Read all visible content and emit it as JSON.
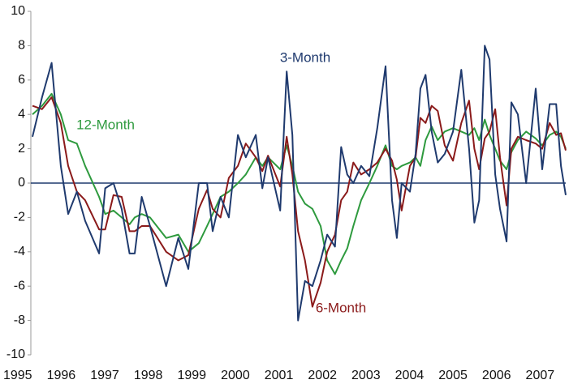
{
  "chart_data": {
    "type": "line",
    "x": [
      1995.34,
      1995.56,
      1995.78,
      1995.99,
      1996.16,
      1996.36,
      1996.55,
      1996.87,
      1997.01,
      1997.2,
      1997.39,
      1997.57,
      1997.69,
      1997.85,
      1998.04,
      1998.41,
      1998.69,
      1998.92,
      1999.16,
      1999.35,
      1999.48,
      1999.66,
      1999.85,
      2000.06,
      2000.24,
      2000.47,
      2000.62,
      2000.75,
      2001.03,
      2001.18,
      2001.31,
      2001.44,
      2001.6,
      2001.77,
      2001.96,
      2002.11,
      2002.29,
      2002.43,
      2002.57,
      2002.71,
      2002.89,
      2003.08,
      2003.26,
      2003.45,
      2003.6,
      2003.71,
      2003.82,
      2004.01,
      2004.14,
      2004.25,
      2004.37,
      2004.51,
      2004.65,
      2004.81,
      2005.0,
      2005.19,
      2005.37,
      2005.49,
      2005.6,
      2005.73,
      2005.84,
      2005.97,
      2006.08,
      2006.23,
      2006.34,
      2006.49,
      2006.68,
      2006.9,
      2007.05,
      2007.22,
      2007.37,
      2007.48,
      2007.59
    ],
    "series": [
      {
        "name": "3-Month",
        "color": "#1f3a6e",
        "values": [
          2.7,
          5,
          7,
          1,
          -1.8,
          -0.5,
          -2.2,
          -4.1,
          -0.3,
          0,
          -1.5,
          -4.1,
          -4.1,
          -0.8,
          -2.5,
          -6,
          -3.2,
          -5,
          0,
          0,
          -2.8,
          -0.8,
          -2,
          2.8,
          1.5,
          2.8,
          -0.3,
          1.5,
          -1.6,
          6.5,
          2.8,
          -8,
          -5.7,
          -6,
          -4.5,
          -3,
          -3.7,
          2.1,
          0.5,
          0,
          1,
          0.4,
          3.2,
          6.8,
          -1,
          -3.2,
          0,
          -0.5,
          1.7,
          5.5,
          6.3,
          3,
          1.2,
          1.7,
          3,
          6.6,
          2,
          -2.3,
          -1,
          8,
          7.2,
          0.5,
          -1.5,
          -3.4,
          4.7,
          4,
          0,
          5.5,
          0.8,
          4.6,
          4.6,
          1,
          -0.7
        ]
      },
      {
        "name": "6-Month",
        "color": "#8b1a1a",
        "values": [
          4.5,
          4.3,
          5,
          3.5,
          1,
          -0.5,
          -1,
          -2.7,
          -2.7,
          -0.7,
          -0.8,
          -2.8,
          -2.8,
          -2.5,
          -2.5,
          -4,
          -4.5,
          -4.2,
          -1.5,
          -0.4,
          -1.5,
          -2,
          0.3,
          1,
          2.3,
          1.5,
          0.7,
          1.6,
          -0.2,
          2.7,
          0.5,
          -2.8,
          -4.5,
          -7.2,
          -5.8,
          -4,
          -3,
          -1,
          -0.5,
          1.2,
          0.5,
          0.8,
          1.2,
          2,
          1.3,
          0.2,
          -1.6,
          1,
          1.5,
          3.8,
          3.5,
          4.5,
          4.2,
          2.2,
          1.3,
          3.5,
          4.8,
          2,
          0.8,
          2.6,
          3,
          4.3,
          1.5,
          -1.3,
          2,
          2.7,
          2.5,
          2.3,
          2,
          3.5,
          2.8,
          2.9,
          1.9
        ]
      },
      {
        "name": "12-Month",
        "color": "#2e9a3e",
        "values": [
          4,
          4.5,
          5.2,
          4,
          2.5,
          2.3,
          1,
          -0.8,
          -1.8,
          -1.6,
          -2,
          -2.4,
          -2,
          -1.8,
          -2,
          -3.2,
          -3,
          -4,
          -3.5,
          -2.5,
          -1.8,
          -0.8,
          -0.5,
          0,
          0.5,
          1.5,
          1,
          1.5,
          0.8,
          2.2,
          1,
          -0.5,
          -1.2,
          -1.5,
          -2.5,
          -4.5,
          -5.3,
          -4.5,
          -3.8,
          -2.5,
          -1,
          0,
          1,
          2.2,
          1,
          0.8,
          1,
          1.2,
          1.5,
          1,
          2.5,
          3.3,
          2.5,
          3,
          3.2,
          3,
          2.8,
          3.2,
          2.5,
          3.7,
          2.8,
          2,
          1.3,
          0.8,
          1.8,
          2.5,
          3,
          2.6,
          2.2,
          2.8,
          3,
          2.7,
          2
        ]
      }
    ],
    "xlim": [
      1995.34,
      2007.59
    ],
    "xticks": [
      1995,
      1996,
      1997,
      1998,
      1999,
      2000,
      2001,
      2002,
      2003,
      2004,
      2005,
      2006,
      2007
    ],
    "ylim": [
      -10,
      10
    ],
    "yticks": [
      -10,
      -8,
      -6,
      -4,
      -2,
      0,
      2,
      4,
      6,
      8,
      10
    ]
  }
}
